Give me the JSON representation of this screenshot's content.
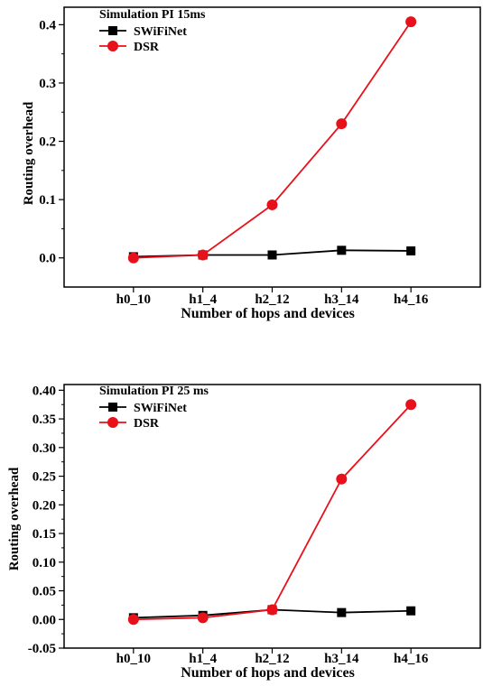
{
  "chart_data": [
    {
      "type": "line",
      "title": "",
      "legend_title": "Simulation PI 15ms",
      "legend_position": "top-left",
      "xlabel": "Number of hops and devices",
      "ylabel": "Routing overhead",
      "categories": [
        "h0_10",
        "h1_4",
        "h2_12",
        "h3_14",
        "h4_16"
      ],
      "ylim": [
        -0.05,
        0.43
      ],
      "yticks": [
        0.0,
        0.1,
        0.2,
        0.3,
        0.4
      ],
      "ytick_labels": [
        "0.0",
        "0.1",
        "0.2",
        "0.3",
        "0.4"
      ],
      "grid": false,
      "series": [
        {
          "name": "SWiFiNet",
          "color": "#000000",
          "marker": "square",
          "values": [
            0.002,
            0.005,
            0.005,
            0.013,
            0.012
          ]
        },
        {
          "name": "DSR",
          "color": "#e8101a",
          "marker": "circle",
          "values": [
            0.0,
            0.005,
            0.091,
            0.23,
            0.405
          ]
        }
      ]
    },
    {
      "type": "line",
      "title": "",
      "legend_title": "Simulation PI 25 ms",
      "legend_position": "top-left",
      "xlabel": "Number of hops and devices",
      "ylabel": "Routing overhead",
      "categories": [
        "h0_10",
        "h1_4",
        "h2_12",
        "h3_14",
        "h4_16"
      ],
      "ylim": [
        -0.05,
        0.41
      ],
      "yticks": [
        -0.05,
        0.0,
        0.05,
        0.1,
        0.15,
        0.2,
        0.25,
        0.3,
        0.35,
        0.4
      ],
      "ytick_labels": [
        "-0.05",
        "0.00",
        "0.05",
        "0.10",
        "0.15",
        "0.20",
        "0.25",
        "0.30",
        "0.35",
        "0.40"
      ],
      "grid": false,
      "series": [
        {
          "name": "SWiFiNet",
          "color": "#000000",
          "marker": "square",
          "values": [
            0.003,
            0.007,
            0.017,
            0.012,
            0.015
          ]
        },
        {
          "name": "DSR",
          "color": "#e8101a",
          "marker": "circle",
          "values": [
            0.0,
            0.003,
            0.017,
            0.245,
            0.375
          ]
        }
      ]
    }
  ]
}
